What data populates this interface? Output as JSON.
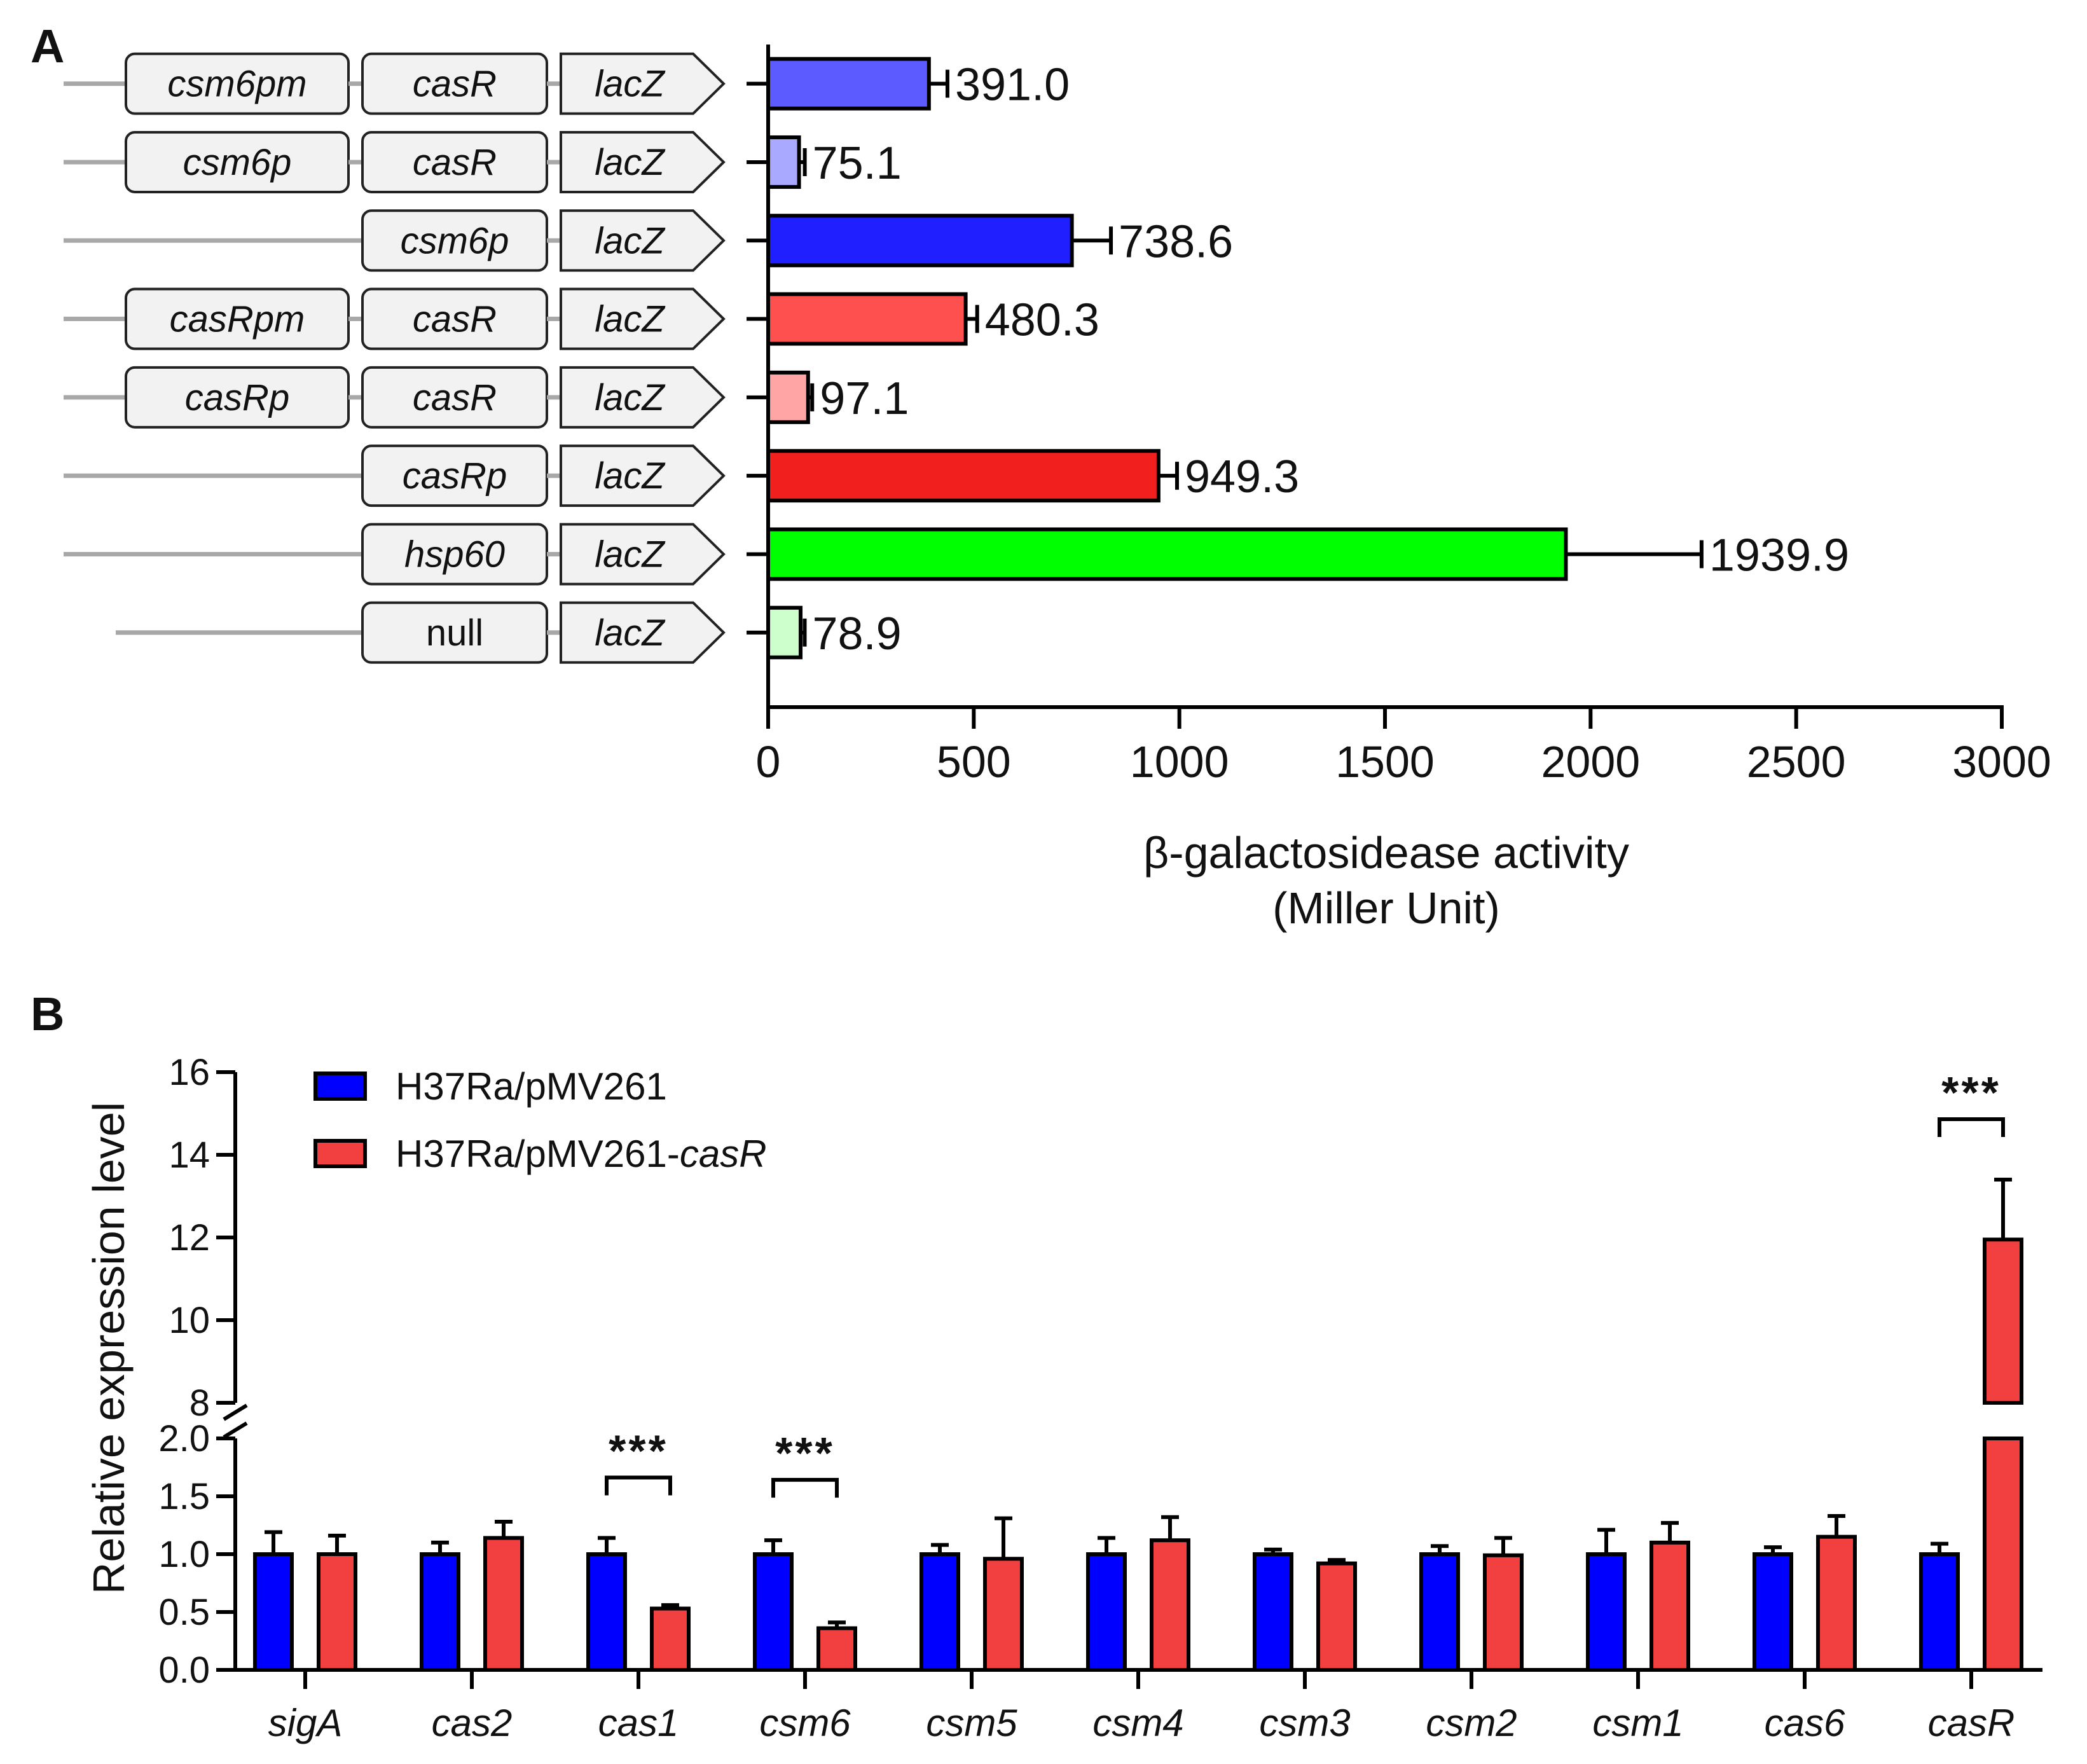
{
  "panel_a": {
    "letter": "A",
    "chart_data": {
      "type": "bar",
      "orientation": "horizontal",
      "constructs": [
        {
          "boxes": [
            "csm6pm",
            "casR",
            "lacZ"
          ],
          "italic": [
            true,
            true,
            true
          ],
          "value": 391.0,
          "value_label": "391.0",
          "error": 45,
          "color": "#5b5bff"
        },
        {
          "boxes": [
            "csm6p",
            "casR",
            "lacZ"
          ],
          "italic": [
            true,
            true,
            true
          ],
          "value": 75.1,
          "value_label": "75.1",
          "error": 14,
          "color": "#a9a9ff"
        },
        {
          "boxes": [
            "csm6p",
            "lacZ"
          ],
          "italic": [
            true,
            true
          ],
          "value": 738.6,
          "value_label": "738.6",
          "error": 95,
          "color": "#1f1fff"
        },
        {
          "boxes": [
            "casRpm",
            "casR",
            "lacZ"
          ],
          "italic": [
            true,
            true,
            true
          ],
          "value": 480.3,
          "value_label": "480.3",
          "error": 28,
          "color": "#ff5050"
        },
        {
          "boxes": [
            "casRp",
            "casR",
            "lacZ"
          ],
          "italic": [
            true,
            true,
            true
          ],
          "value": 97.1,
          "value_label": "97.1",
          "error": 10,
          "color": "#ffa5a5"
        },
        {
          "boxes": [
            "casRp",
            "lacZ"
          ],
          "italic": [
            true,
            true
          ],
          "value": 949.3,
          "value_label": "949.3",
          "error": 45,
          "color": "#f21f1f"
        },
        {
          "boxes": [
            "hsp60",
            "lacZ"
          ],
          "italic": [
            true,
            true
          ],
          "value": 1939.9,
          "value_label": "1939.9",
          "error": 330,
          "color": "#00ff00"
        },
        {
          "boxes": [
            "null",
            "lacZ"
          ],
          "italic": [
            false,
            true
          ],
          "value": 78.9,
          "value_label": "78.9",
          "error": 10,
          "color": "#ccffcc"
        }
      ],
      "xlim": [
        0,
        3000
      ],
      "xticks": [
        0,
        500,
        1000,
        1500,
        2000,
        2500,
        3000
      ],
      "xtick_labels": [
        "0",
        "500",
        "1000",
        "1500",
        "2000",
        "2500",
        "3000"
      ],
      "xlabel_line1": "β-galactosidease activity",
      "xlabel_line2": "(Miller Unit)"
    }
  },
  "panel_b": {
    "letter": "B",
    "chart_data": {
      "type": "bar",
      "categories": [
        "sigA",
        "cas2",
        "cas1",
        "csm6",
        "csm5",
        "csm4",
        "csm3",
        "csm2",
        "csm1",
        "cas6",
        "casR"
      ],
      "series": [
        {
          "name": "H37Ra/pMV261",
          "name_suffix": "",
          "color": "#0000ff",
          "values": [
            1.0,
            1.0,
            1.0,
            1.0,
            1.0,
            1.0,
            1.0,
            1.0,
            1.0,
            1.0,
            1.0
          ],
          "errors": [
            0.19,
            0.1,
            0.14,
            0.12,
            0.08,
            0.14,
            0.04,
            0.07,
            0.21,
            0.06,
            0.09
          ]
        },
        {
          "name": "H37Ra/pMV261-",
          "name_suffix": "casR",
          "color": "#f24040",
          "values": [
            1.0,
            1.14,
            0.53,
            0.36,
            0.96,
            1.12,
            0.92,
            0.99,
            1.1,
            1.15,
            11.95
          ],
          "errors": [
            0.16,
            0.14,
            0.03,
            0.05,
            0.35,
            0.2,
            0.03,
            0.15,
            0.17,
            0.18,
            1.45
          ]
        }
      ],
      "ylabel": "Relative expression level",
      "y_axis_break": {
        "lower_range": [
          0,
          2.0
        ],
        "upper_range": [
          8,
          16
        ]
      },
      "yticks_lower": [
        0.0,
        0.5,
        1.0,
        1.5,
        2.0
      ],
      "yticks_lower_labels": [
        "0.0",
        "0.5",
        "1.0",
        "1.5",
        "2.0"
      ],
      "yticks_upper": [
        8,
        10,
        12,
        14,
        16
      ],
      "yticks_upper_labels": [
        "8",
        "10",
        "12",
        "14",
        "16"
      ],
      "significance": [
        {
          "category": "cas1",
          "label": "***"
        },
        {
          "category": "csm6",
          "label": "***"
        },
        {
          "category": "casR",
          "label": "***"
        }
      ],
      "legend_position": "top-left"
    }
  }
}
